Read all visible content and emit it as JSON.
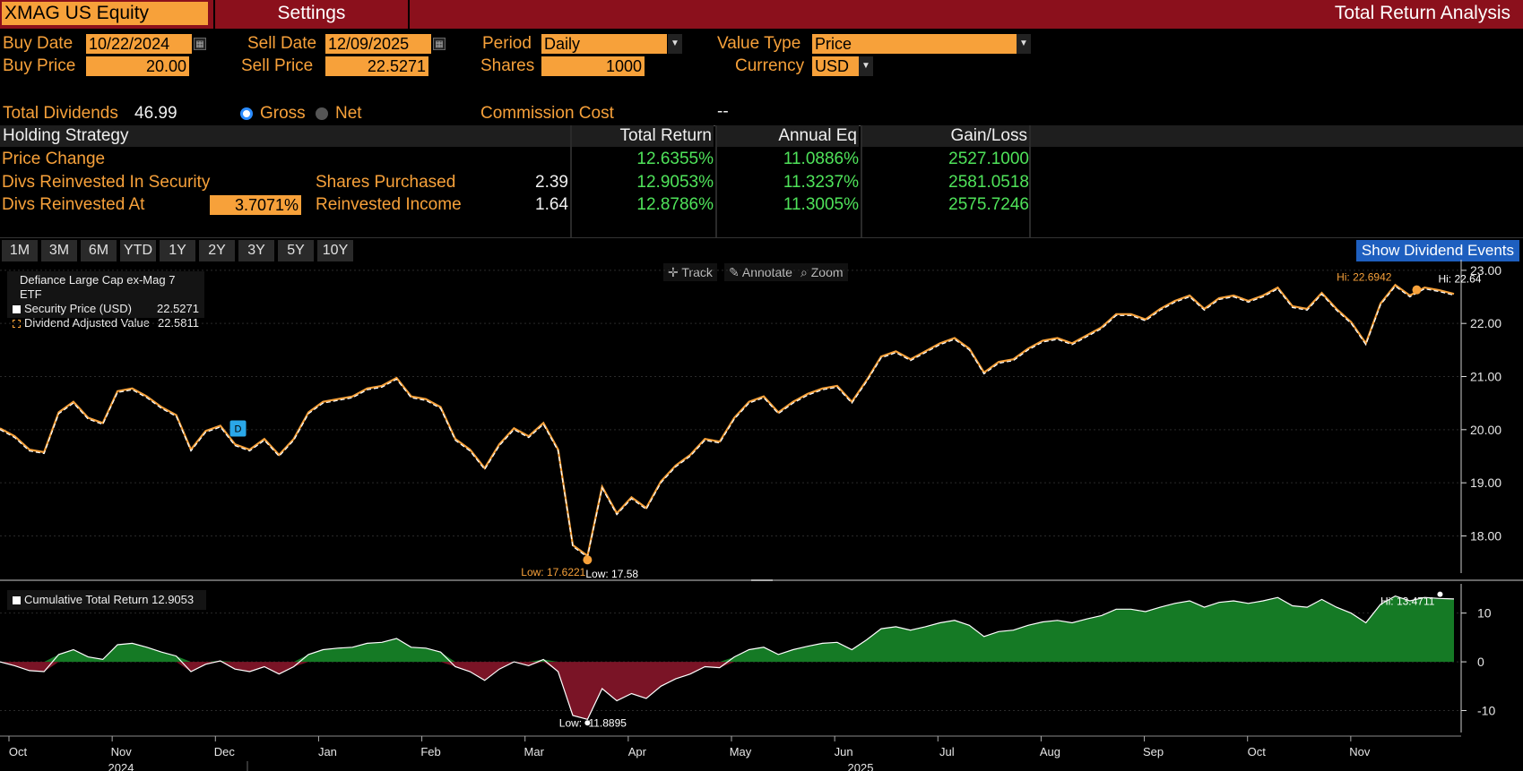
{
  "header": {
    "ticker": "XMAG US Equity",
    "settings_tab": "Settings",
    "title": "Total Return Analysis"
  },
  "form": {
    "buy_date_label": "Buy Date",
    "buy_date": "10/22/2024",
    "sell_date_label": "Sell Date",
    "sell_date": "12/09/2025",
    "period_label": "Period",
    "period": "Daily",
    "value_type_label": "Value Type",
    "value_type": "Price",
    "buy_price_label": "Buy Price",
    "buy_price": "20.00",
    "sell_price_label": "Sell Price",
    "sell_price": "22.5271",
    "shares_label": "Shares",
    "shares": "1000",
    "currency_label": "Currency",
    "currency": "USD",
    "total_dividends_label": "Total Dividends",
    "total_dividends": "46.99",
    "gross_label": "Gross",
    "net_label": "Net",
    "commission_label": "Commission Cost",
    "commission": "--"
  },
  "table": {
    "headers": [
      "Holding Strategy",
      "Total Return",
      "Annual Eq",
      "Gain/Loss"
    ],
    "rows": [
      {
        "strategy": "Price Change",
        "sub_label": "",
        "sub_value": "",
        "total_return": "12.6355%",
        "annual_eq": "11.0886%",
        "gain_loss": "2527.1000"
      },
      {
        "strategy": "Divs Reinvested In Security",
        "sub_label": "Shares Purchased",
        "sub_value": "2.39",
        "total_return": "12.9053%",
        "annual_eq": "11.3237%",
        "gain_loss": "2581.0518"
      },
      {
        "strategy": "Divs Reinvested At",
        "rate": "3.7071%",
        "sub_label": "Reinvested Income",
        "sub_value": "1.64",
        "total_return": "12.8786%",
        "annual_eq": "11.3005%",
        "gain_loss": "2575.7246"
      }
    ]
  },
  "ranges": [
    "1M",
    "3M",
    "6M",
    "YTD",
    "1Y",
    "2Y",
    "3Y",
    "5Y",
    "10Y"
  ],
  "show_dividend_events": "Show Dividend Events",
  "tools": {
    "track": "Track",
    "annotate": "Annotate",
    "zoom": "Zoom"
  },
  "colors": {
    "accent": "#f7a13a",
    "title_bar": "#8b101c",
    "positive": "#4fe35a",
    "area_pos": "#157a25",
    "area_neg": "#7a1426",
    "button_blue": "#1e5fbf"
  },
  "chart_data": [
    {
      "type": "line",
      "title": "Defiance Large Cap ex-Mag 7 ETF",
      "series": [
        {
          "name": "Security Price (USD)",
          "last": "22.5271",
          "color": "#ffffff",
          "values": [
            20.0,
            19.85,
            19.6,
            19.55,
            20.3,
            20.5,
            20.2,
            20.1,
            20.7,
            20.75,
            20.6,
            20.4,
            20.25,
            19.6,
            19.95,
            20.05,
            19.7,
            19.6,
            19.8,
            19.5,
            19.8,
            20.3,
            20.5,
            20.55,
            20.6,
            20.75,
            20.8,
            20.95,
            20.6,
            20.55,
            20.4,
            19.8,
            19.6,
            19.25,
            19.7,
            20.0,
            19.85,
            20.1,
            19.6,
            17.8,
            17.6,
            18.9,
            18.4,
            18.7,
            18.5,
            19.0,
            19.3,
            19.5,
            19.8,
            19.75,
            20.2,
            20.5,
            20.6,
            20.3,
            20.5,
            20.65,
            20.75,
            20.8,
            20.5,
            20.9,
            21.35,
            21.45,
            21.3,
            21.45,
            21.6,
            21.7,
            21.5,
            21.05,
            21.25,
            21.3,
            21.5,
            21.65,
            21.7,
            21.6,
            21.75,
            21.9,
            22.15,
            22.15,
            22.05,
            22.25,
            22.4,
            22.5,
            22.25,
            22.45,
            22.5,
            22.4,
            22.5,
            22.65,
            22.3,
            22.25,
            22.55,
            22.25,
            22.0,
            21.6,
            22.35,
            22.7,
            22.5,
            22.65,
            22.6,
            22.53
          ]
        },
        {
          "name": "Dividend Adjusted Value",
          "last": "22.5811",
          "color": "#f7a13a"
        }
      ],
      "annotations": {
        "dividend_marker": "D",
        "low_adjusted": "Low: 17.6221",
        "low": "Low: 17.58",
        "hi_adjusted": "Hi: 22.6942",
        "hi": "Hi: 22.64"
      },
      "y_ticks": [
        "23.00",
        "22.00",
        "21.00",
        "20.00",
        "19.00",
        "18.00"
      ],
      "ylim": [
        17.3,
        23.2
      ]
    },
    {
      "type": "area",
      "series": [
        {
          "name": "Cumulative Total Return",
          "last": "12.9053",
          "values": [
            0,
            -0.8,
            -1.8,
            -2.0,
            1.5,
            2.5,
            1.0,
            0.5,
            3.5,
            3.8,
            3.0,
            2.0,
            1.2,
            -2.0,
            -0.5,
            0.2,
            -1.5,
            -2.0,
            -1.0,
            -2.5,
            -1.0,
            1.5,
            2.5,
            2.8,
            3.0,
            3.8,
            4.0,
            4.8,
            3.0,
            2.8,
            2.0,
            -1.0,
            -2.0,
            -3.8,
            -1.5,
            0,
            -0.8,
            0.5,
            -2.0,
            -11.0,
            -11.8,
            -5.5,
            -8.0,
            -6.5,
            -7.5,
            -5.0,
            -3.5,
            -2.5,
            -1.0,
            -1.2,
            1.0,
            2.5,
            3.0,
            1.5,
            2.5,
            3.2,
            3.8,
            4.0,
            2.5,
            4.5,
            6.8,
            7.2,
            6.5,
            7.2,
            8.0,
            8.5,
            7.5,
            5.2,
            6.2,
            6.5,
            7.5,
            8.2,
            8.5,
            8.0,
            8.8,
            9.5,
            10.8,
            10.8,
            10.3,
            11.2,
            12.0,
            12.5,
            11.2,
            12.2,
            12.5,
            12.0,
            12.5,
            13.2,
            11.5,
            11.2,
            12.8,
            11.2,
            10.0,
            8.0,
            11.8,
            13.5,
            12.5,
            13.2,
            13.0,
            12.9
          ]
        }
      ],
      "annotations": {
        "low": "Low: -11.8895",
        "hi": "Hi: 13.4711"
      },
      "y_ticks": [
        "10",
        "0",
        "-10"
      ],
      "ylim": [
        -14.5,
        16
      ]
    }
  ],
  "x_axis": {
    "months": [
      "Oct",
      "Nov",
      "Dec",
      "Jan",
      "Feb",
      "Mar",
      "Apr",
      "May",
      "Jun",
      "Jul",
      "Aug",
      "Sep",
      "Oct",
      "Nov"
    ],
    "years": [
      "2024",
      "2025"
    ]
  }
}
